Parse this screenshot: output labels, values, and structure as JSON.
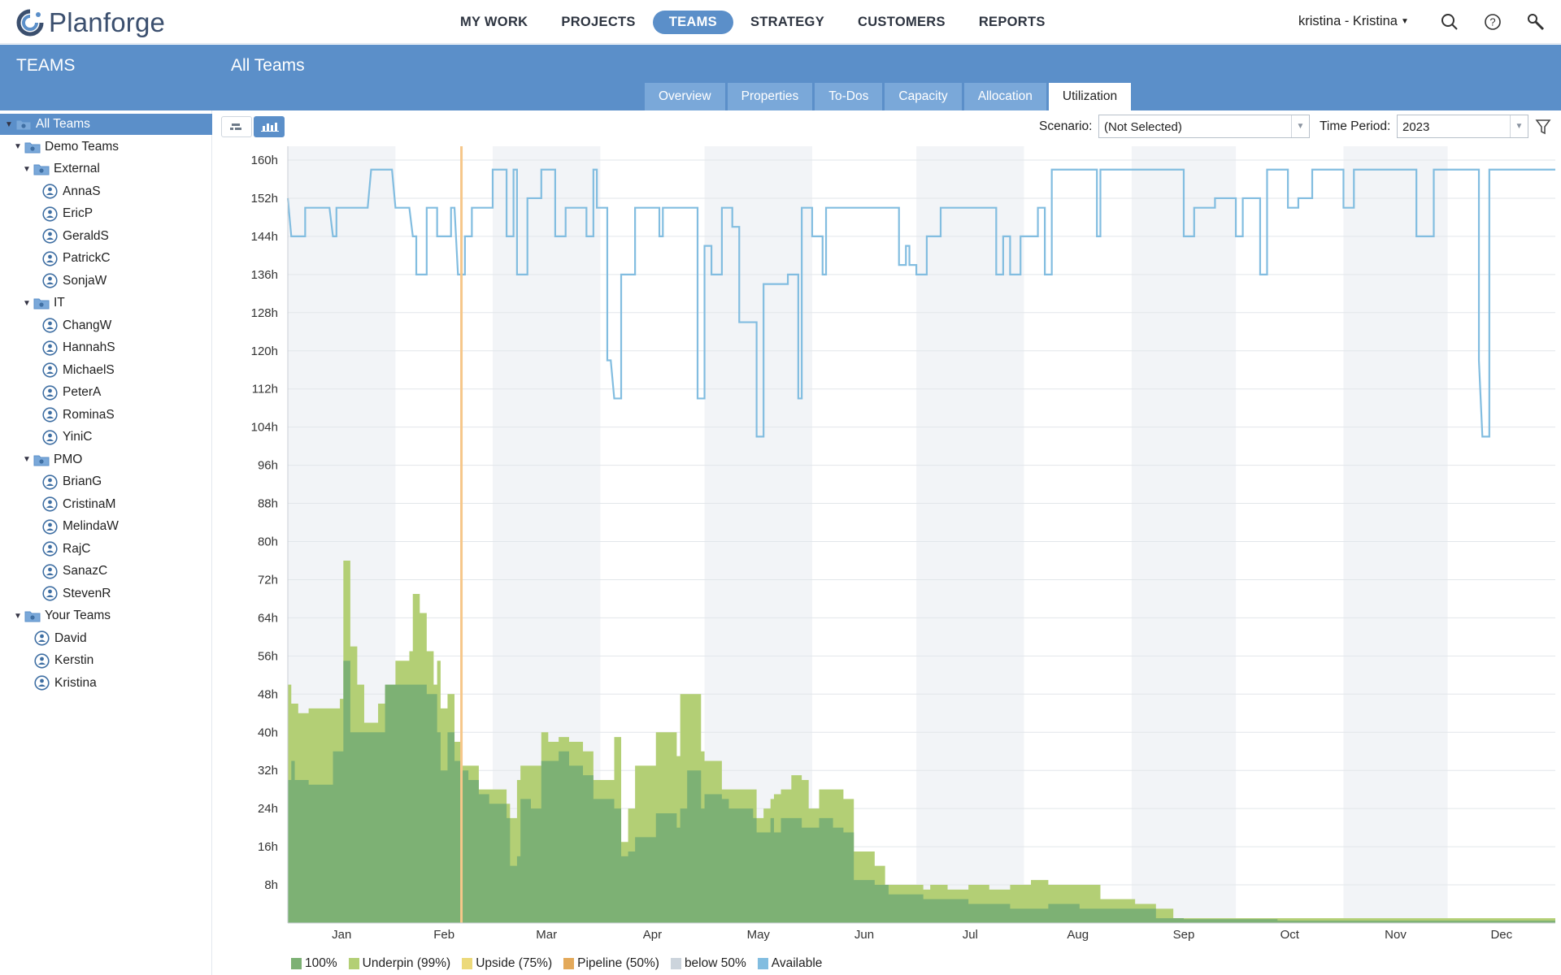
{
  "app": {
    "name": "Planforge"
  },
  "nav": {
    "items": [
      "MY WORK",
      "PROJECTS",
      "TEAMS",
      "STRATEGY",
      "CUSTOMERS",
      "REPORTS"
    ],
    "active": "TEAMS"
  },
  "user": {
    "label": "kristina - Kristina"
  },
  "left_header": "TEAMS",
  "main_header": {
    "title": "All Teams",
    "tabs": [
      "Overview",
      "Properties",
      "To-Dos",
      "Capacity",
      "Allocation",
      "Utilization"
    ],
    "active_tab": "Utilization"
  },
  "tree": [
    {
      "label": "All Teams",
      "kind": "folder",
      "level": 0,
      "expanded": true,
      "selected": true
    },
    {
      "label": "Demo Teams",
      "kind": "folder",
      "level": 1,
      "expanded": true
    },
    {
      "label": "External",
      "kind": "folder",
      "level": 2,
      "expanded": true
    },
    {
      "label": "AnnaS",
      "kind": "person",
      "level": 3
    },
    {
      "label": "EricP",
      "kind": "person",
      "level": 3
    },
    {
      "label": "GeraldS",
      "kind": "person",
      "level": 3
    },
    {
      "label": "PatrickC",
      "kind": "person",
      "level": 3
    },
    {
      "label": "SonjaW",
      "kind": "person",
      "level": 3
    },
    {
      "label": "IT",
      "kind": "folder",
      "level": 2,
      "expanded": true
    },
    {
      "label": "ChangW",
      "kind": "person",
      "level": 3
    },
    {
      "label": "HannahS",
      "kind": "person",
      "level": 3
    },
    {
      "label": "MichaelS",
      "kind": "person",
      "level": 3
    },
    {
      "label": "PeterA",
      "kind": "person",
      "level": 3
    },
    {
      "label": "RominaS",
      "kind": "person",
      "level": 3
    },
    {
      "label": "YiniC",
      "kind": "person",
      "level": 3
    },
    {
      "label": "PMO",
      "kind": "folder",
      "level": 2,
      "expanded": true
    },
    {
      "label": "BrianG",
      "kind": "person",
      "level": 3
    },
    {
      "label": "CristinaM",
      "kind": "person",
      "level": 3
    },
    {
      "label": "MelindaW",
      "kind": "person",
      "level": 3
    },
    {
      "label": "RajC",
      "kind": "person",
      "level": 3
    },
    {
      "label": "SanazC",
      "kind": "person",
      "level": 3
    },
    {
      "label": "StevenR",
      "kind": "person",
      "level": 3
    },
    {
      "label": "Your Teams",
      "kind": "folder",
      "level": 1,
      "expanded": true
    },
    {
      "label": "David",
      "kind": "person",
      "level": 2
    },
    {
      "label": "Kerstin",
      "kind": "person",
      "level": 2
    },
    {
      "label": "Kristina",
      "kind": "person",
      "level": 2
    }
  ],
  "toolbar": {
    "scenario_label": "Scenario:",
    "scenario_value": "(Not Selected)",
    "period_label": "Time Period:",
    "period_value": "2023"
  },
  "colors": {
    "accent": "#5b8fc9",
    "full": "#7db174",
    "underpin": "#b3cf75",
    "upside": "#ecd97a",
    "pipeline": "#e3a95a",
    "below50": "#ccd4dc",
    "available": "#82bde0",
    "today": "#f6c78a"
  },
  "chart_data": {
    "type": "area",
    "ylim": [
      0,
      165
    ],
    "y_ticks": [
      "8h",
      "16h",
      "24h",
      "32h",
      "40h",
      "48h",
      "56h",
      "64h",
      "72h",
      "80h",
      "88h",
      "96h",
      "104h",
      "112h",
      "120h",
      "128h",
      "136h",
      "144h",
      "152h",
      "160h"
    ],
    "months": [
      "Jan",
      "Feb",
      "Mar",
      "Apr",
      "May",
      "Jun",
      "Jul",
      "Aug",
      "Sep",
      "Oct",
      "Nov",
      "Dec"
    ],
    "today_day": 50,
    "legend": [
      {
        "name": "100%",
        "color_key": "full"
      },
      {
        "name": "Underpin (99%)",
        "color_key": "underpin"
      },
      {
        "name": "Upside (75%)",
        "color_key": "upside"
      },
      {
        "name": "Pipeline (50%)",
        "color_key": "pipeline"
      },
      {
        "name": "below 50%",
        "color_key": "below50"
      },
      {
        "name": "Available",
        "color_key": "available"
      }
    ],
    "available": [
      [
        0,
        152
      ],
      [
        1,
        144
      ],
      [
        5,
        144
      ],
      [
        5,
        150
      ],
      [
        12,
        150
      ],
      [
        13,
        144
      ],
      [
        14,
        144
      ],
      [
        14,
        150
      ],
      [
        23,
        150
      ],
      [
        24,
        158
      ],
      [
        30,
        158
      ],
      [
        31,
        150
      ],
      [
        35,
        150
      ],
      [
        36,
        144
      ],
      [
        37,
        144
      ],
      [
        37,
        136
      ],
      [
        40,
        136
      ],
      [
        40,
        150
      ],
      [
        43,
        150
      ],
      [
        43,
        144
      ],
      [
        47,
        144
      ],
      [
        47,
        150
      ],
      [
        48,
        150
      ],
      [
        49,
        136
      ],
      [
        51,
        136
      ],
      [
        51,
        144
      ],
      [
        53,
        144
      ],
      [
        53,
        150
      ],
      [
        59,
        150
      ],
      [
        59,
        158
      ],
      [
        63,
        158
      ],
      [
        63,
        144
      ],
      [
        65,
        144
      ],
      [
        65,
        158
      ],
      [
        66,
        158
      ],
      [
        66,
        136
      ],
      [
        69,
        136
      ],
      [
        69,
        152
      ],
      [
        73,
        152
      ],
      [
        73,
        158
      ],
      [
        77,
        158
      ],
      [
        77,
        144
      ],
      [
        80,
        144
      ],
      [
        80,
        150
      ],
      [
        86,
        150
      ],
      [
        86,
        144
      ],
      [
        88,
        144
      ],
      [
        88,
        158
      ],
      [
        89,
        158
      ],
      [
        89,
        150
      ],
      [
        92,
        150
      ],
      [
        92,
        118
      ],
      [
        93,
        118
      ],
      [
        94,
        110
      ],
      [
        96,
        110
      ],
      [
        96,
        136
      ],
      [
        100,
        136
      ],
      [
        100,
        150
      ],
      [
        107,
        150
      ],
      [
        107,
        144
      ],
      [
        108,
        144
      ],
      [
        108,
        150
      ],
      [
        118,
        150
      ],
      [
        118,
        110
      ],
      [
        120,
        110
      ],
      [
        120,
        142
      ],
      [
        122,
        142
      ],
      [
        122,
        136
      ],
      [
        125,
        136
      ],
      [
        125,
        150
      ],
      [
        128,
        150
      ],
      [
        128,
        146
      ],
      [
        130,
        146
      ],
      [
        130,
        126
      ],
      [
        135,
        126
      ],
      [
        135,
        102
      ],
      [
        137,
        102
      ],
      [
        137,
        134
      ],
      [
        144,
        134
      ],
      [
        144,
        136
      ],
      [
        147,
        136
      ],
      [
        147,
        110
      ],
      [
        148,
        110
      ],
      [
        148,
        150
      ],
      [
        151,
        150
      ],
      [
        151,
        144
      ],
      [
        154,
        144
      ],
      [
        154,
        136
      ],
      [
        155,
        136
      ],
      [
        155,
        150
      ],
      [
        176,
        150
      ],
      [
        176,
        138
      ],
      [
        178,
        138
      ],
      [
        178,
        142
      ],
      [
        179,
        142
      ],
      [
        179,
        138
      ],
      [
        181,
        138
      ],
      [
        181,
        136
      ],
      [
        184,
        136
      ],
      [
        184,
        144
      ],
      [
        188,
        144
      ],
      [
        188,
        150
      ],
      [
        204,
        150
      ],
      [
        204,
        136
      ],
      [
        206,
        136
      ],
      [
        206,
        144
      ],
      [
        208,
        144
      ],
      [
        208,
        136
      ],
      [
        211,
        136
      ],
      [
        211,
        144
      ],
      [
        216,
        144
      ],
      [
        216,
        150
      ],
      [
        218,
        150
      ],
      [
        218,
        136
      ],
      [
        220,
        136
      ],
      [
        220,
        158
      ],
      [
        233,
        158
      ],
      [
        233,
        144
      ],
      [
        234,
        144
      ],
      [
        234,
        158
      ],
      [
        258,
        158
      ],
      [
        258,
        144
      ],
      [
        261,
        144
      ],
      [
        261,
        150
      ],
      [
        267,
        150
      ],
      [
        267,
        152
      ],
      [
        273,
        152
      ],
      [
        273,
        144
      ],
      [
        275,
        144
      ],
      [
        275,
        152
      ],
      [
        280,
        152
      ],
      [
        280,
        136
      ],
      [
        282,
        136
      ],
      [
        282,
        158
      ],
      [
        288,
        158
      ],
      [
        288,
        150
      ],
      [
        291,
        150
      ],
      [
        291,
        152
      ],
      [
        295,
        152
      ],
      [
        295,
        158
      ],
      [
        304,
        158
      ],
      [
        304,
        150
      ],
      [
        307,
        150
      ],
      [
        307,
        158
      ],
      [
        325,
        158
      ],
      [
        325,
        144
      ],
      [
        330,
        144
      ],
      [
        330,
        158
      ],
      [
        343,
        158
      ],
      [
        343,
        118
      ],
      [
        344,
        102
      ],
      [
        346,
        102
      ],
      [
        346,
        158
      ],
      [
        352,
        158
      ],
      [
        365,
        158
      ]
    ],
    "full": [
      [
        0,
        30
      ],
      [
        1,
        34
      ],
      [
        2,
        30
      ],
      [
        6,
        29
      ],
      [
        13,
        36
      ],
      [
        16,
        55
      ],
      [
        18,
        40
      ],
      [
        26,
        40
      ],
      [
        28,
        50
      ],
      [
        37,
        50
      ],
      [
        40,
        48
      ],
      [
        43,
        40
      ],
      [
        44,
        32
      ],
      [
        46,
        40
      ],
      [
        48,
        34
      ],
      [
        50,
        32
      ],
      [
        52,
        30
      ],
      [
        55,
        27
      ],
      [
        58,
        25
      ],
      [
        63,
        22
      ],
      [
        64,
        12
      ],
      [
        66,
        14
      ],
      [
        67,
        26
      ],
      [
        70,
        24
      ],
      [
        73,
        34
      ],
      [
        78,
        36
      ],
      [
        81,
        33
      ],
      [
        85,
        31
      ],
      [
        88,
        26
      ],
      [
        94,
        24
      ],
      [
        96,
        14
      ],
      [
        98,
        15
      ],
      [
        100,
        18
      ],
      [
        106,
        23
      ],
      [
        112,
        20
      ],
      [
        113,
        24
      ],
      [
        115,
        32
      ],
      [
        119,
        24
      ],
      [
        120,
        27
      ],
      [
        125,
        26
      ],
      [
        127,
        24
      ],
      [
        134,
        22
      ],
      [
        135,
        19
      ],
      [
        139,
        22
      ],
      [
        140,
        19
      ],
      [
        142,
        22
      ],
      [
        145,
        22
      ],
      [
        148,
        20
      ],
      [
        150,
        20
      ],
      [
        153,
        22
      ],
      [
        157,
        20
      ],
      [
        160,
        19
      ],
      [
        163,
        18
      ],
      [
        165,
        18
      ],
      [
        163,
        9
      ],
      [
        169,
        8
      ],
      [
        173,
        6
      ],
      [
        183,
        5
      ],
      [
        185,
        5
      ],
      [
        196,
        4
      ],
      [
        208,
        3
      ],
      [
        219,
        4
      ],
      [
        228,
        3
      ],
      [
        235,
        3
      ],
      [
        244,
        3
      ],
      [
        250,
        1
      ],
      [
        255,
        1
      ],
      [
        258,
        0.8
      ],
      [
        262,
        0.8
      ],
      [
        268,
        0.8
      ],
      [
        274,
        0.8
      ],
      [
        280,
        0.8
      ],
      [
        285,
        0.5
      ],
      [
        300,
        0.5
      ],
      [
        310,
        0.5
      ],
      [
        320,
        0.5
      ],
      [
        330,
        0.5
      ],
      [
        340,
        0.5
      ],
      [
        350,
        0.5
      ],
      [
        365,
        0.5
      ]
    ],
    "underpin": [
      [
        0,
        50
      ],
      [
        1,
        46
      ],
      [
        3,
        44
      ],
      [
        6,
        45
      ],
      [
        13,
        45
      ],
      [
        15,
        47
      ],
      [
        16,
        76
      ],
      [
        18,
        58
      ],
      [
        20,
        50
      ],
      [
        22,
        42
      ],
      [
        26,
        46
      ],
      [
        28,
        49
      ],
      [
        31,
        55
      ],
      [
        35,
        57
      ],
      [
        36,
        69
      ],
      [
        38,
        65
      ],
      [
        40,
        57
      ],
      [
        42,
        50
      ],
      [
        43,
        55
      ],
      [
        44,
        45
      ],
      [
        46,
        48
      ],
      [
        48,
        38
      ],
      [
        50,
        33
      ],
      [
        55,
        28
      ],
      [
        58,
        28
      ],
      [
        63,
        25
      ],
      [
        64,
        22
      ],
      [
        66,
        30
      ],
      [
        67,
        33
      ],
      [
        70,
        33
      ],
      [
        73,
        40
      ],
      [
        75,
        38
      ],
      [
        78,
        39
      ],
      [
        81,
        38
      ],
      [
        85,
        36
      ],
      [
        88,
        30
      ],
      [
        94,
        39
      ],
      [
        96,
        17
      ],
      [
        98,
        24
      ],
      [
        100,
        33
      ],
      [
        106,
        40
      ],
      [
        112,
        35
      ],
      [
        113,
        48
      ],
      [
        115,
        48
      ],
      [
        119,
        36
      ],
      [
        120,
        34
      ],
      [
        125,
        28
      ],
      [
        127,
        28
      ],
      [
        134,
        28
      ],
      [
        135,
        22
      ],
      [
        137,
        24
      ],
      [
        139,
        26
      ],
      [
        140,
        27
      ],
      [
        142,
        28
      ],
      [
        145,
        31
      ],
      [
        148,
        30
      ],
      [
        150,
        24
      ],
      [
        153,
        28
      ],
      [
        157,
        28
      ],
      [
        160,
        26
      ],
      [
        163,
        26
      ],
      [
        163,
        15
      ],
      [
        169,
        12
      ],
      [
        172,
        8
      ],
      [
        178,
        8
      ],
      [
        183,
        7
      ],
      [
        185,
        8
      ],
      [
        190,
        7
      ],
      [
        196,
        8
      ],
      [
        202,
        7
      ],
      [
        208,
        8
      ],
      [
        214,
        9
      ],
      [
        219,
        8
      ],
      [
        228,
        8
      ],
      [
        234,
        5
      ],
      [
        244,
        4
      ],
      [
        250,
        3
      ],
      [
        255,
        1
      ],
      [
        258,
        1
      ],
      [
        262,
        1
      ],
      [
        268,
        1
      ],
      [
        274,
        1
      ],
      [
        280,
        1
      ],
      [
        285,
        1
      ],
      [
        290,
        1
      ],
      [
        300,
        1
      ],
      [
        310,
        1
      ],
      [
        320,
        1
      ],
      [
        330,
        1
      ],
      [
        340,
        1
      ],
      [
        350,
        1
      ],
      [
        365,
        1
      ]
    ]
  }
}
